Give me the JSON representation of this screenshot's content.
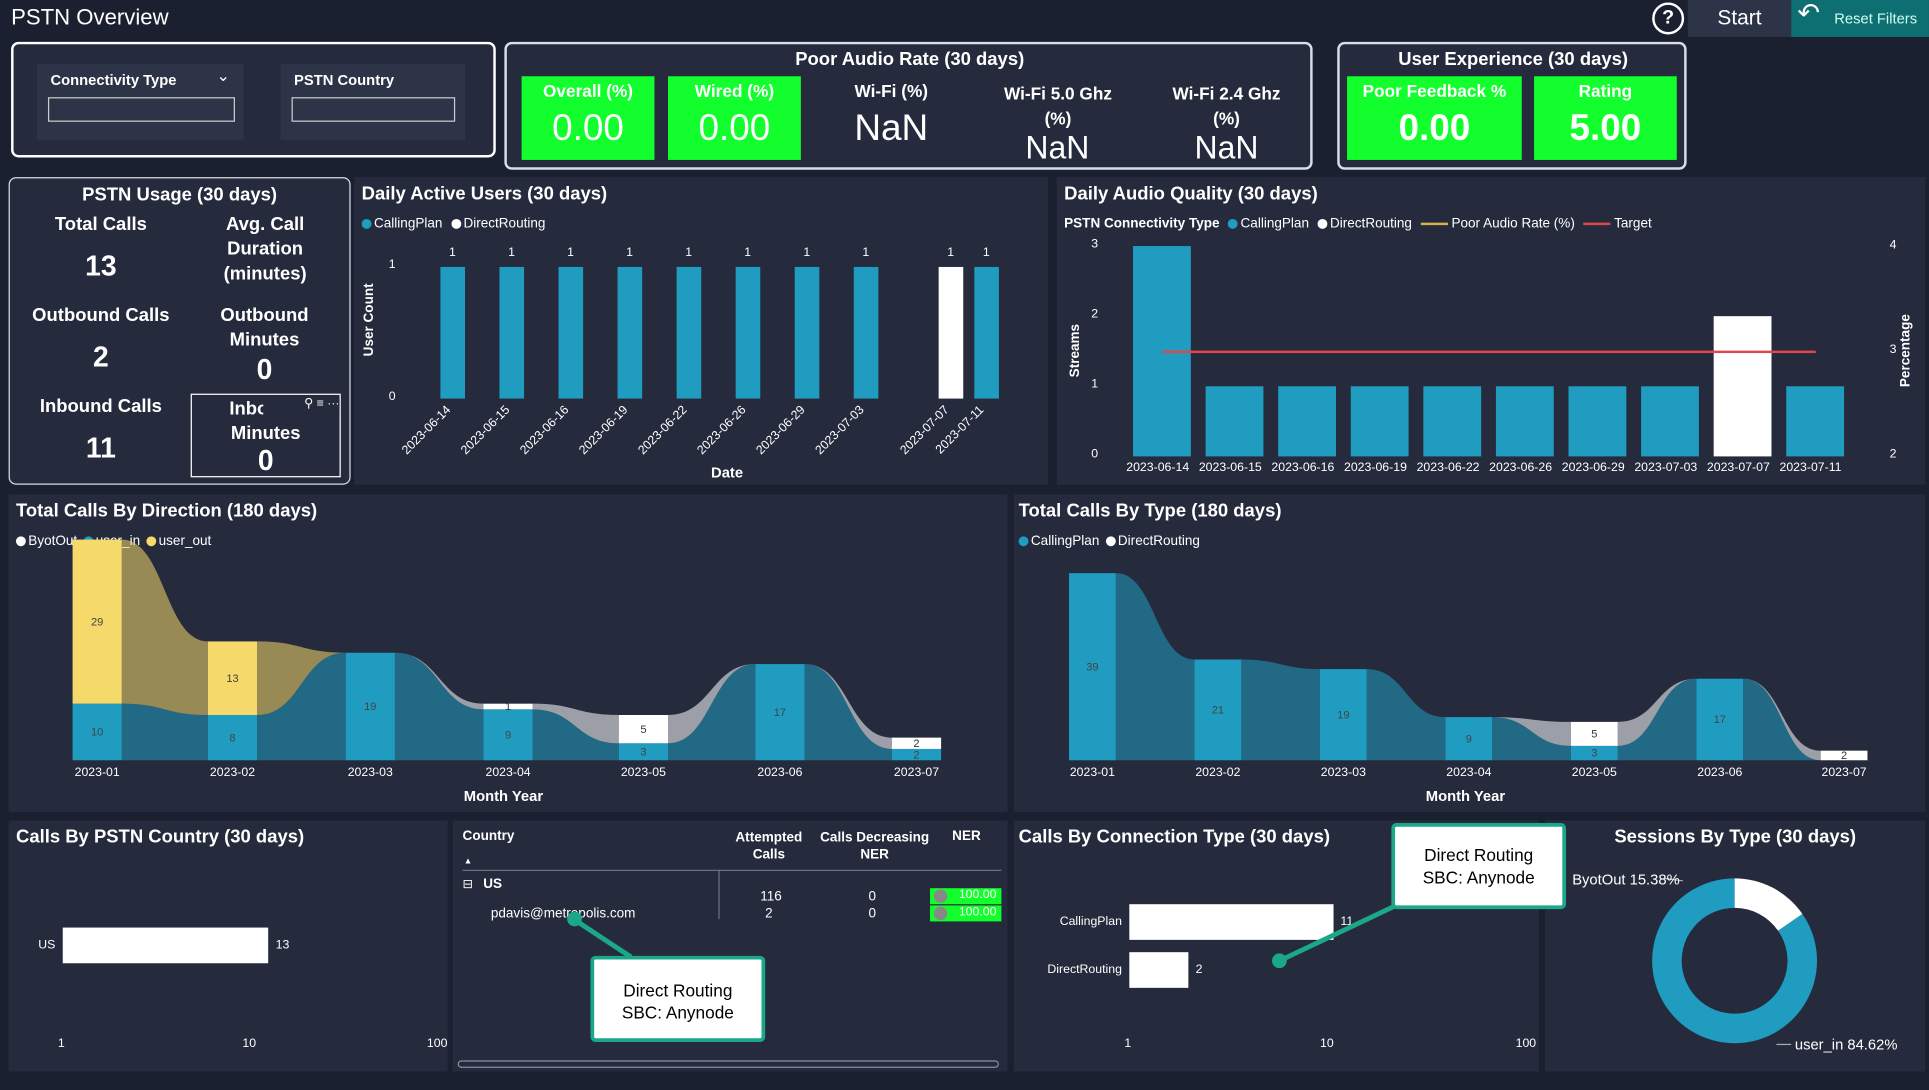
{
  "header": {
    "title": "PSTN Overview",
    "start_label": "Start",
    "reset_label": "Reset Filters",
    "help_icon": "help-icon",
    "reset_icon": "undo-icon"
  },
  "filters": {
    "connectivity_label": "Connectivity Type",
    "country_label": "PSTN Country"
  },
  "poor_audio": {
    "title": "Poor Audio Rate (30 days)",
    "overall_label": "Overall (%)",
    "overall_value": "0.00",
    "wired_label": "Wired (%)",
    "wired_value": "0.00",
    "wifi_label": "Wi-Fi (%)",
    "wifi_value": "NaN",
    "wifi5_label": "Wi-Fi 5.0 Ghz (%)",
    "wifi5_value": "NaN",
    "wifi24_label": "Wi-Fi 2.4 Ghz (%)",
    "wifi24_value": "NaN"
  },
  "user_exp": {
    "title": "User Experience (30 days)",
    "poor_label": "Poor Feedback %",
    "poor_value": "0.00",
    "rating_label": "Rating",
    "rating_value": "5.00"
  },
  "usage": {
    "title": "PSTN Usage (30 days)",
    "total_label": "Total Calls",
    "total_value": "13",
    "avg_label": "Avg. Call Duration (minutes)",
    "outbound_label": "Outbound Calls",
    "outbound_value": "2",
    "outmin_label": "Outbound Minutes",
    "outmin_value": "0",
    "inbound_label": "Inbound Calls",
    "inbound_value": "11",
    "inmin_label": "Inbound Minutes",
    "inmin_value": "0"
  },
  "dau": {
    "title": "Daily Active Users (30 days)",
    "ylabel": "User Count",
    "xlabel": "Date",
    "legend": [
      "CallingPlan",
      "DirectRouting"
    ]
  },
  "daq": {
    "title": "Daily Audio Quality (30 days)",
    "legend_title": "PSTN Connectivity Type",
    "legend": [
      "CallingPlan",
      "DirectRouting",
      "Poor Audio Rate (%)",
      "Target"
    ],
    "ylabel": "Streams",
    "y2label": "Percentage"
  },
  "dir": {
    "title": "Total Calls By Direction (180 days)",
    "legend": [
      "ByotOut",
      "user_in",
      "user_out"
    ],
    "xlabel": "Month Year"
  },
  "type": {
    "title": "Total Calls By Type (180 days)",
    "legend": [
      "CallingPlan",
      "DirectRouting"
    ],
    "xlabel": "Month Year"
  },
  "country": {
    "title": "Calls By PSTN Country (30 days)"
  },
  "table": {
    "col_country": "Country",
    "col_attempted": "Attempted Calls",
    "col_decreasing": "Calls Decreasing NER",
    "col_ner": "NER",
    "group": "US",
    "row_user": "pdavis@metropolis.com",
    "group_attempted": "116",
    "group_decreasing": "0",
    "group_ner": "100.00",
    "row_attempted": "2",
    "row_decreasing": "0",
    "row_ner": "100.00",
    "expand_icon": "minus-square-icon"
  },
  "conn": {
    "title": "Calls By Connection Type (30 days)"
  },
  "sessions": {
    "title": "Sessions By Type (30 days)",
    "byot_label": "ByotOut 15.38%",
    "userin_label": "user_in 84.62%"
  },
  "callouts": {
    "left": "Direct Routing SBC: Anynode",
    "right": "Direct Routing SBC: Anynode"
  },
  "colors": {
    "teal": "#1f9cbf",
    "white": "#ffffff",
    "yellow": "#f5d96a",
    "green": "#12ff2d",
    "red": "#e0474c",
    "target": "#d4b44a"
  },
  "chart_data": [
    {
      "type": "bar",
      "title": "Daily Active Users (30 days)",
      "xlabel": "Date",
      "ylabel": "User Count",
      "categories": [
        "2023-06-14",
        "2023-06-15",
        "2023-06-16",
        "2023-06-19",
        "2023-06-22",
        "2023-06-26",
        "2023-06-29",
        "2023-07-03",
        "2023-07-07",
        "2023-07-11"
      ],
      "series": [
        {
          "name": "CallingPlan",
          "values": [
            1,
            1,
            1,
            1,
            1,
            1,
            1,
            1,
            0,
            1
          ]
        },
        {
          "name": "DirectRouting",
          "values": [
            0,
            0,
            0,
            0,
            0,
            0,
            0,
            0,
            1,
            0
          ]
        }
      ],
      "ylim": [
        0,
        1
      ],
      "yticks": [
        "0",
        "1"
      ]
    },
    {
      "type": "bar",
      "title": "Daily Audio Quality (30 days)",
      "ylabel": "Streams",
      "y2label": "Percentage",
      "categories": [
        "2023-06-14",
        "2023-06-15",
        "2023-06-16",
        "2023-06-19",
        "2023-06-22",
        "2023-06-26",
        "2023-06-29",
        "2023-07-03",
        "2023-07-07",
        "2023-07-11"
      ],
      "series": [
        {
          "name": "CallingPlan",
          "values": [
            3,
            1,
            1,
            1,
            1,
            1,
            1,
            1,
            0,
            1
          ]
        },
        {
          "name": "DirectRouting",
          "values": [
            0,
            0,
            0,
            0,
            0,
            0,
            0,
            0,
            2,
            0
          ]
        },
        {
          "name": "Target",
          "values": [
            3,
            3,
            3,
            3,
            3,
            3,
            3,
            3,
            3,
            3
          ]
        }
      ],
      "ylim": [
        0,
        3
      ],
      "y2lim": [
        2,
        4
      ],
      "yticks": [
        "0",
        "1",
        "2",
        "3"
      ],
      "y2ticks": [
        "2",
        "3",
        "4"
      ]
    },
    {
      "type": "area",
      "title": "Total Calls By Direction (180 days)",
      "xlabel": "Month Year",
      "categories": [
        "2023-01",
        "2023-02",
        "2023-03",
        "2023-04",
        "2023-05",
        "2023-06",
        "2023-07"
      ],
      "series": [
        {
          "name": "ByotOut",
          "values": [
            0,
            0,
            0,
            1,
            5,
            0,
            2
          ]
        },
        {
          "name": "user_in",
          "values": [
            10,
            8,
            19,
            9,
            3,
            17,
            2
          ]
        },
        {
          "name": "user_out",
          "values": [
            29,
            13,
            0,
            0,
            0,
            0,
            0
          ]
        }
      ]
    },
    {
      "type": "area",
      "title": "Total Calls By Type (180 days)",
      "xlabel": "Month Year",
      "categories": [
        "2023-01",
        "2023-02",
        "2023-03",
        "2023-04",
        "2023-05",
        "2023-06",
        "2023-07"
      ],
      "series": [
        {
          "name": "CallingPlan",
          "values": [
            39,
            21,
            19,
            9,
            3,
            17,
            0
          ]
        },
        {
          "name": "DirectRouting",
          "values": [
            0,
            0,
            0,
            0,
            5,
            0,
            2
          ]
        }
      ]
    },
    {
      "type": "bar",
      "title": "Calls By PSTN Country (30 days)",
      "categories": [
        "US"
      ],
      "values": [
        13
      ],
      "xscale": "log",
      "xticks": [
        "1",
        "10",
        "100"
      ]
    },
    {
      "type": "bar",
      "title": "Calls By Connection Type (30 days)",
      "categories": [
        "CallingPlan",
        "DirectRouting"
      ],
      "values": [
        11,
        2
      ],
      "xscale": "log",
      "xticks": [
        "1",
        "10",
        "100"
      ]
    },
    {
      "type": "pie",
      "title": "Sessions By Type (30 days)",
      "categories": [
        "ByotOut",
        "user_in"
      ],
      "values": [
        15.38,
        84.62
      ]
    }
  ]
}
